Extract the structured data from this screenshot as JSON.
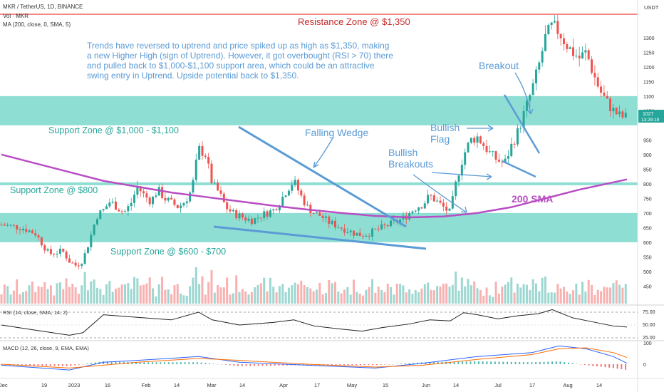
{
  "header": {
    "symbol_line": "MKR / TetherUS, 1D, BINANCE",
    "vol_label": "Vol · MKR",
    "ma_label": "MA (200, close, 0, SMA, 5)",
    "currency": "USDT"
  },
  "annotations": {
    "resistance": "Resistance Zone @ $1,350",
    "commentary": [
      "Trends have reversed to uptrend and price spiked up as high as $1,350, making",
      "a new Higher High (sign of Uptrend). However, it got overbought (RSI > 70) there",
      "and pulled back to $1,000-$1,100 support area, which could be an attractive",
      "swing entry in Uptrend. Upside potential back to $1,350."
    ],
    "support_1000": "Support Zone @ $1,000 - $1,100",
    "support_800": "Support Zone @ $800",
    "support_600": "Support Zone @ $600 - $700",
    "falling_wedge": "Falling Wedge",
    "bullish_flag": [
      "Bullish",
      "Flag"
    ],
    "bullish_breakouts": [
      "Bullish",
      "Breakouts"
    ],
    "breakout": "Breakout",
    "sma": "200 SMA"
  },
  "rsi": {
    "label": "RSI (14, close, SMA, 14, 2)",
    "ticks": [
      "75.00",
      "50.00",
      "25.00"
    ]
  },
  "macd": {
    "label": "MACD (12, 26, close, 9, EMA, EMA)",
    "ticks": [
      "100",
      "0"
    ]
  },
  "price_tag": {
    "price": "1027",
    "time": "13:28:19"
  },
  "colors": {
    "up": "#26a69a",
    "down": "#ef5350",
    "zone": "#8fded3",
    "sma": "#b84ec4",
    "annotation": "#5b9bd5",
    "resistance_text": "#c62828",
    "resistance_line": "#f48888"
  },
  "chart_data": {
    "type": "candlestick",
    "ylim": [
      390,
      1380
    ],
    "y_ticks": [
      1300,
      1250,
      1200,
      1150,
      1100,
      1050,
      950,
      900,
      850,
      800,
      750,
      700,
      650,
      600,
      550,
      500,
      450
    ],
    "x_labels": [
      "Dec",
      "19",
      "2023",
      "16",
      "Feb",
      "14",
      "Mar",
      "14",
      "Apr",
      "17",
      "May",
      "15",
      "Jun",
      "14",
      "Jul",
      "17",
      "Aug",
      "14"
    ],
    "zones": [
      {
        "name": "Resistance Zone @ $1,350",
        "low": 1350,
        "high": 1350
      },
      {
        "name": "Support Zone @ $1,000 - $1,100",
        "low": 1000,
        "high": 1100
      },
      {
        "name": "Support Zone @ $800",
        "low": 800,
        "high": 800
      },
      {
        "name": "Support Zone @ $600 - $700",
        "low": 600,
        "high": 700
      }
    ],
    "close_path": [
      [
        0,
        660
      ],
      [
        3,
        650
      ],
      [
        5,
        630
      ],
      [
        7,
        560
      ],
      [
        9,
        570
      ],
      [
        10,
        535
      ],
      [
        11,
        520
      ],
      [
        12,
        540
      ],
      [
        13,
        610
      ],
      [
        14,
        690
      ],
      [
        15,
        710
      ],
      [
        16,
        740
      ],
      [
        17,
        720
      ],
      [
        18,
        700
      ],
      [
        19,
        730
      ],
      [
        20,
        790
      ],
      [
        21,
        760
      ],
      [
        22,
        740
      ],
      [
        23,
        780
      ],
      [
        24,
        750
      ],
      [
        25,
        735
      ],
      [
        26,
        720
      ],
      [
        27,
        740
      ],
      [
        28,
        780
      ],
      [
        29,
        920
      ],
      [
        30,
        900
      ],
      [
        31,
        800
      ],
      [
        32,
        770
      ],
      [
        33,
        720
      ],
      [
        34,
        700
      ],
      [
        35,
        690
      ],
      [
        36,
        680
      ],
      [
        37,
        675
      ],
      [
        38,
        690
      ],
      [
        39,
        700
      ],
      [
        40,
        710
      ],
      [
        41,
        740
      ],
      [
        42,
        780
      ],
      [
        43,
        810
      ],
      [
        44,
        760
      ],
      [
        45,
        720
      ],
      [
        46,
        700
      ],
      [
        47,
        690
      ],
      [
        48,
        670
      ],
      [
        49,
        660
      ],
      [
        50,
        650
      ],
      [
        51,
        640
      ],
      [
        52,
        630
      ],
      [
        53,
        625
      ],
      [
        54,
        630
      ],
      [
        55,
        640
      ],
      [
        56,
        650
      ],
      [
        57,
        660
      ],
      [
        58,
        670
      ],
      [
        59,
        680
      ],
      [
        60,
        700
      ],
      [
        61,
        720
      ],
      [
        62,
        730
      ],
      [
        63,
        760
      ],
      [
        64,
        740
      ],
      [
        65,
        720
      ],
      [
        66,
        700
      ],
      [
        67,
        820
      ],
      [
        68,
        900
      ],
      [
        69,
        950
      ],
      [
        70,
        960
      ],
      [
        71,
        930
      ],
      [
        72,
        900
      ],
      [
        73,
        880
      ],
      [
        74,
        870
      ],
      [
        75,
        930
      ],
      [
        76,
        980
      ],
      [
        77,
        1050
      ],
      [
        78,
        1120
      ],
      [
        79,
        1200
      ],
      [
        80,
        1300
      ],
      [
        81,
        1340
      ],
      [
        82,
        1320
      ],
      [
        83,
        1280
      ],
      [
        84,
        1250
      ],
      [
        85,
        1230
      ],
      [
        86,
        1250
      ],
      [
        87,
        1180
      ],
      [
        88,
        1120
      ],
      [
        89,
        1080
      ],
      [
        90,
        1050
      ],
      [
        91,
        1030
      ],
      [
        92,
        1027
      ]
    ],
    "sma_200": [
      [
        0,
        900
      ],
      [
        5,
        870
      ],
      [
        10,
        840
      ],
      [
        15,
        810
      ],
      [
        20,
        790
      ],
      [
        25,
        770
      ],
      [
        30,
        755
      ],
      [
        35,
        740
      ],
      [
        40,
        725
      ],
      [
        45,
        712
      ],
      [
        50,
        700
      ],
      [
        55,
        690
      ],
      [
        60,
        685
      ],
      [
        65,
        688
      ],
      [
        70,
        700
      ],
      [
        75,
        720
      ],
      [
        80,
        750
      ],
      [
        85,
        780
      ],
      [
        90,
        805
      ],
      [
        92,
        815
      ]
    ],
    "rsi_series": [
      [
        0,
        50
      ],
      [
        5,
        40
      ],
      [
        10,
        30
      ],
      [
        12,
        35
      ],
      [
        15,
        70
      ],
      [
        20,
        65
      ],
      [
        25,
        60
      ],
      [
        29,
        75
      ],
      [
        31,
        60
      ],
      [
        35,
        50
      ],
      [
        40,
        55
      ],
      [
        43,
        60
      ],
      [
        46,
        48
      ],
      [
        50,
        42
      ],
      [
        53,
        38
      ],
      [
        56,
        45
      ],
      [
        60,
        52
      ],
      [
        63,
        60
      ],
      [
        66,
        58
      ],
      [
        68,
        74
      ],
      [
        70,
        70
      ],
      [
        73,
        62
      ],
      [
        76,
        68
      ],
      [
        79,
        72
      ],
      [
        81,
        80
      ],
      [
        84,
        64
      ],
      [
        87,
        56
      ],
      [
        90,
        48
      ],
      [
        92,
        46
      ]
    ],
    "macd_series": [
      [
        0,
        -5
      ],
      [
        10,
        -30
      ],
      [
        15,
        10
      ],
      [
        20,
        20
      ],
      [
        29,
        40
      ],
      [
        35,
        10
      ],
      [
        45,
        -5
      ],
      [
        55,
        -20
      ],
      [
        62,
        5
      ],
      [
        70,
        40
      ],
      [
        78,
        60
      ],
      [
        82,
        95
      ],
      [
        86,
        80
      ],
      [
        90,
        40
      ],
      [
        92,
        5
      ]
    ],
    "signal_series": [
      [
        0,
        0
      ],
      [
        10,
        -20
      ],
      [
        15,
        -5
      ],
      [
        20,
        10
      ],
      [
        29,
        30
      ],
      [
        35,
        20
      ],
      [
        45,
        0
      ],
      [
        55,
        -15
      ],
      [
        62,
        -5
      ],
      [
        70,
        25
      ],
      [
        78,
        50
      ],
      [
        82,
        80
      ],
      [
        86,
        85
      ],
      [
        90,
        60
      ],
      [
        92,
        35
      ]
    ]
  }
}
